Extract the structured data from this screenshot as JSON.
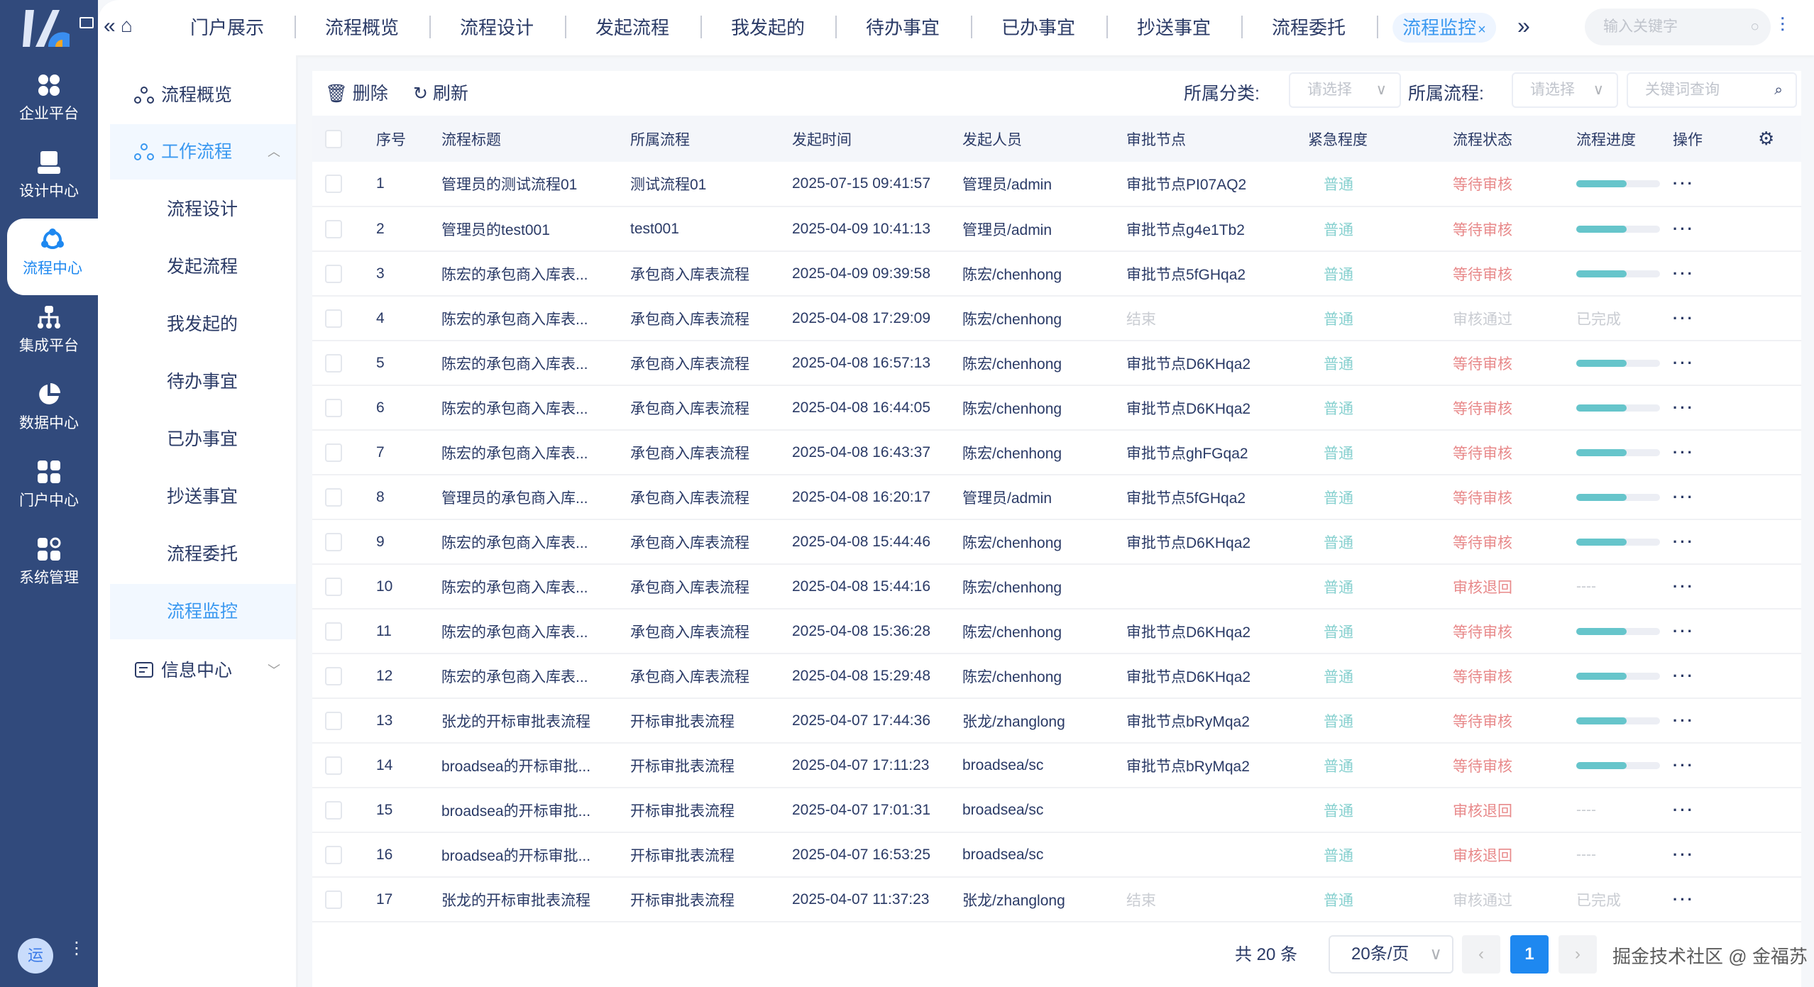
{
  "rail": {
    "items": [
      {
        "label": "企业平台",
        "icon": "grid-icon"
      },
      {
        "label": "设计中心",
        "icon": "design-icon"
      },
      {
        "label": "流程中心",
        "icon": "flow-icon",
        "active": true
      },
      {
        "label": "集成平台",
        "icon": "org-tree-icon"
      },
      {
        "label": "数据中心",
        "icon": "pie-chart-icon"
      },
      {
        "label": "门户中心",
        "icon": "apps-icon"
      },
      {
        "label": "系统管理",
        "icon": "settings-apps-icon"
      }
    ],
    "avatar": "运"
  },
  "tabs": [
    "门户展示",
    "流程概览",
    "流程设计",
    "发起流程",
    "我发起的",
    "待办事宜",
    "已办事宜",
    "抄送事宜",
    "流程委托",
    "流程监控"
  ],
  "active_tab_close": "×",
  "top_search_placeholder": "输入关键字",
  "submenu": {
    "overview": "流程概览",
    "group": "工作流程",
    "items": [
      "流程设计",
      "发起流程",
      "我发起的",
      "待办事宜",
      "已办事宜",
      "抄送事宜",
      "流程委托",
      "流程监控"
    ],
    "info": "信息中心"
  },
  "toolbar": {
    "delete": "删除",
    "refresh": "刷新",
    "category_label": "所属分类:",
    "category_placeholder": "请选择",
    "flow_label": "所属流程:",
    "flow_placeholder": "请选择",
    "keyword_placeholder": "关键词查询"
  },
  "columns": [
    "序号",
    "流程标题",
    "所属流程",
    "发起时间",
    "发起人员",
    "审批节点",
    "紧急程度",
    "流程状态",
    "流程进度",
    "操作"
  ],
  "rows": [
    [
      "1",
      "管理员的测试流程01",
      "测试流程01",
      "2025-07-15 09:41:57",
      "管理员/admin",
      "审批节点PI07AQ2",
      "普通",
      "等待审核",
      60
    ],
    [
      "2",
      "管理员的test001",
      "test001",
      "2025-04-09 10:41:13",
      "管理员/admin",
      "审批节点g4e1Tb2",
      "普通",
      "等待审核",
      60
    ],
    [
      "3",
      "陈宏的承包商入库表...",
      "承包商入库表流程",
      "2025-04-09 09:39:58",
      "陈宏/chenhong",
      "审批节点5fGHqa2",
      "普通",
      "等待审核",
      60
    ],
    [
      "4",
      "陈宏的承包商入库表...",
      "承包商入库表流程",
      "2025-04-08 17:29:09",
      "陈宏/chenhong",
      "结束",
      "普通",
      "审核通过",
      "已完成"
    ],
    [
      "5",
      "陈宏的承包商入库表...",
      "承包商入库表流程",
      "2025-04-08 16:57:13",
      "陈宏/chenhong",
      "审批节点D6KHqa2",
      "普通",
      "等待审核",
      60
    ],
    [
      "6",
      "陈宏的承包商入库表...",
      "承包商入库表流程",
      "2025-04-08 16:44:05",
      "陈宏/chenhong",
      "审批节点D6KHqa2",
      "普通",
      "等待审核",
      60
    ],
    [
      "7",
      "陈宏的承包商入库表...",
      "承包商入库表流程",
      "2025-04-08 16:43:37",
      "陈宏/chenhong",
      "审批节点ghFGqa2",
      "普通",
      "等待审核",
      60
    ],
    [
      "8",
      "管理员的承包商入库...",
      "承包商入库表流程",
      "2025-04-08 16:20:17",
      "管理员/admin",
      "审批节点5fGHqa2",
      "普通",
      "等待审核",
      60
    ],
    [
      "9",
      "陈宏的承包商入库表...",
      "承包商入库表流程",
      "2025-04-08 15:44:46",
      "陈宏/chenhong",
      "审批节点D6KHqa2",
      "普通",
      "等待审核",
      60
    ],
    [
      "10",
      "陈宏的承包商入库表...",
      "承包商入库表流程",
      "2025-04-08 15:44:16",
      "陈宏/chenhong",
      "",
      "普通",
      "审核退回",
      "----"
    ],
    [
      "11",
      "陈宏的承包商入库表...",
      "承包商入库表流程",
      "2025-04-08 15:36:28",
      "陈宏/chenhong",
      "审批节点D6KHqa2",
      "普通",
      "等待审核",
      60
    ],
    [
      "12",
      "陈宏的承包商入库表...",
      "承包商入库表流程",
      "2025-04-08 15:29:48",
      "陈宏/chenhong",
      "审批节点D6KHqa2",
      "普通",
      "等待审核",
      60
    ],
    [
      "13",
      "张龙的开标审批表流程",
      "开标审批表流程",
      "2025-04-07 17:44:36",
      "张龙/zhanglong",
      "审批节点bRyMqa2",
      "普通",
      "等待审核",
      60
    ],
    [
      "14",
      "broadsea的开标审批...",
      "开标审批表流程",
      "2025-04-07 17:11:23",
      "broadsea/sc",
      "审批节点bRyMqa2",
      "普通",
      "等待审核",
      60
    ],
    [
      "15",
      "broadsea的开标审批...",
      "开标审批表流程",
      "2025-04-07 17:01:31",
      "broadsea/sc",
      "",
      "普通",
      "审核退回",
      "----"
    ],
    [
      "16",
      "broadsea的开标审批...",
      "开标审批表流程",
      "2025-04-07 16:53:25",
      "broadsea/sc",
      "",
      "普通",
      "审核退回",
      "----"
    ],
    [
      "17",
      "张龙的开标审批表流程",
      "开标审批表流程",
      "2025-04-07 11:37:23",
      "张龙/zhanglong",
      "结束",
      "普通",
      "审核通过",
      "已完成"
    ]
  ],
  "ops_label": "···",
  "pagination": {
    "total": "共 20 条",
    "page_size": "20条/页",
    "current": "1"
  },
  "watermark": "掘金技术社区 @ 金福苏",
  "colors": {
    "rail": "#314a7c",
    "accent": "#1e88f0",
    "waiting": "#e8898a",
    "normal": "#86d0cf",
    "progress": "#66c5cb"
  }
}
